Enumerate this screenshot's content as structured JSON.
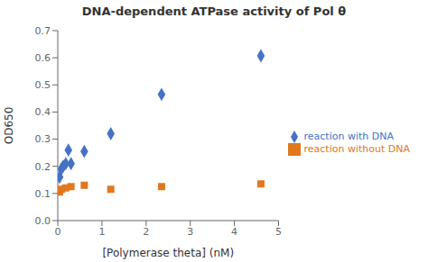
{
  "chart_data": {
    "type": "scatter",
    "title": "DNA-dependent ATPase activity of Pol θ",
    "xlabel": "[Polymerase theta] (nM)",
    "ylabel": "OD650",
    "xlim": [
      0,
      5
    ],
    "ylim": [
      0,
      0.7
    ],
    "xticks": [
      0,
      1,
      2,
      3,
      4,
      5
    ],
    "yticks": [
      {
        "value": 0,
        "label": "0.0"
      },
      0.1,
      0.2,
      0.3,
      0.4,
      0.5,
      0.6,
      0.7
    ],
    "legend": "right",
    "series": [
      {
        "name": "reaction with DNA",
        "color": "#4472c4",
        "marker": "diamond",
        "x": [
          0.04,
          0.08,
          0.12,
          0.18,
          0.24,
          0.3,
          0.6,
          1.2,
          2.35,
          4.6
        ],
        "values": [
          0.16,
          0.19,
          0.2,
          0.21,
          0.26,
          0.21,
          0.255,
          0.32,
          0.465,
          0.607
        ]
      },
      {
        "name": "reaction without DNA",
        "color": "#e07820",
        "marker": "square",
        "x": [
          0.04,
          0.08,
          0.18,
          0.3,
          0.6,
          1.2,
          2.35,
          4.6
        ],
        "values": [
          0.105,
          0.115,
          0.12,
          0.125,
          0.13,
          0.115,
          0.125,
          0.135
        ]
      }
    ]
  }
}
